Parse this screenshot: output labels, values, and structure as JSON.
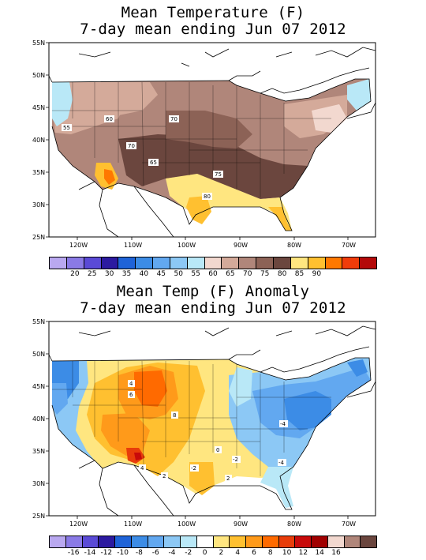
{
  "panels": [
    {
      "title_line1": "Mean Temperature (F)",
      "title_line2": "7-day mean ending Jun 07 2012",
      "lat_ticks": [
        "55N",
        "50N",
        "45N",
        "40N",
        "35N",
        "30N",
        "25N"
      ],
      "lon_ticks": [
        "120W",
        "110W",
        "100W",
        "90W",
        "80W",
        "70W"
      ],
      "colorbar": {
        "colors": [
          "#b9a8f0",
          "#8a7ae6",
          "#5a4ad6",
          "#2c1aa0",
          "#1f63d8",
          "#3c8ce6",
          "#62a8f0",
          "#8cc8f5",
          "#b9e8f7",
          "#f2d8cf",
          "#d4aa9a",
          "#b0867a",
          "#8c6256",
          "#6b463e",
          "#ffe680",
          "#ffc030",
          "#ff7800",
          "#f03c0a",
          "#b40a0a"
        ],
        "labels": [
          "20",
          "25",
          "30",
          "35",
          "40",
          "45",
          "50",
          "55",
          "60",
          "65",
          "70",
          "75",
          "80",
          "85",
          "90"
        ]
      },
      "contour_labels": [
        "55",
        "60",
        "70",
        "70",
        "65",
        "75",
        "80"
      ]
    },
    {
      "title_line1": "Mean Temp (F) Anomaly",
      "title_line2": "7-day mean ending Jun 07 2012",
      "lat_ticks": [
        "55N",
        "50N",
        "45N",
        "40N",
        "35N",
        "30N",
        "25N"
      ],
      "lon_ticks": [
        "120W",
        "110W",
        "100W",
        "90W",
        "80W",
        "70W"
      ],
      "colorbar": {
        "colors": [
          "#b9a8f0",
          "#8a7ae6",
          "#5a4ad6",
          "#2c1aa0",
          "#1f63d8",
          "#3c8ce6",
          "#62a8f0",
          "#8cc8f5",
          "#b9e8f7",
          "#ffffff",
          "#ffe680",
          "#ffc030",
          "#ff9a1a",
          "#ff6a00",
          "#e83c0a",
          "#c80a0a",
          "#a00000",
          "#f2d8cf",
          "#b0867a",
          "#6b463e"
        ],
        "labels": [
          "-16",
          "-14",
          "-12",
          "-10",
          "-8",
          "-6",
          "-4",
          "-2",
          "0",
          "2",
          "4",
          "6",
          "8",
          "10",
          "12",
          "14",
          "16"
        ]
      },
      "contour_labels": [
        "4",
        "6",
        "8",
        "2",
        "4",
        "0",
        "-2",
        "-4",
        "-4",
        "2",
        "-2"
      ]
    }
  ]
}
